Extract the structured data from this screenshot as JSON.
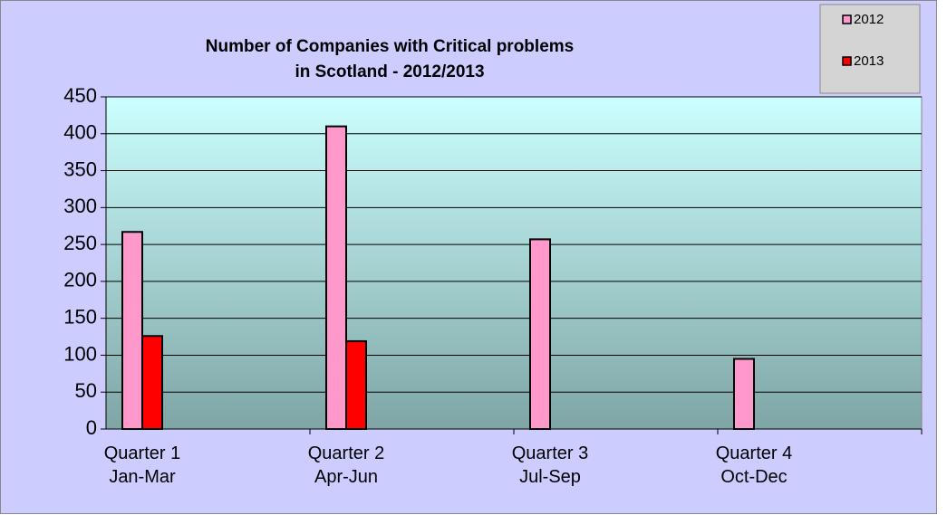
{
  "chart_data": {
    "type": "bar",
    "title": "Number of Companies with Critical problems\nin Scotland - 2012/2013",
    "categories": [
      "Quarter 1\nJan-Mar",
      "Quarter 2\nApr-Jun",
      "Quarter 3\nJul-Sep",
      "Quarter 4\nOct-Dec"
    ],
    "series": [
      {
        "name": "2012",
        "color": "#ff99cc",
        "values": [
          267,
          410,
          257,
          95
        ]
      },
      {
        "name": "2013",
        "color": "#ff0000",
        "values": [
          126,
          119,
          null,
          null
        ]
      }
    ],
    "ylim": [
      0,
      450
    ],
    "yticks": [
      0,
      50,
      100,
      150,
      200,
      250,
      300,
      350,
      400,
      450
    ],
    "grid": true,
    "legend": "top-right"
  }
}
